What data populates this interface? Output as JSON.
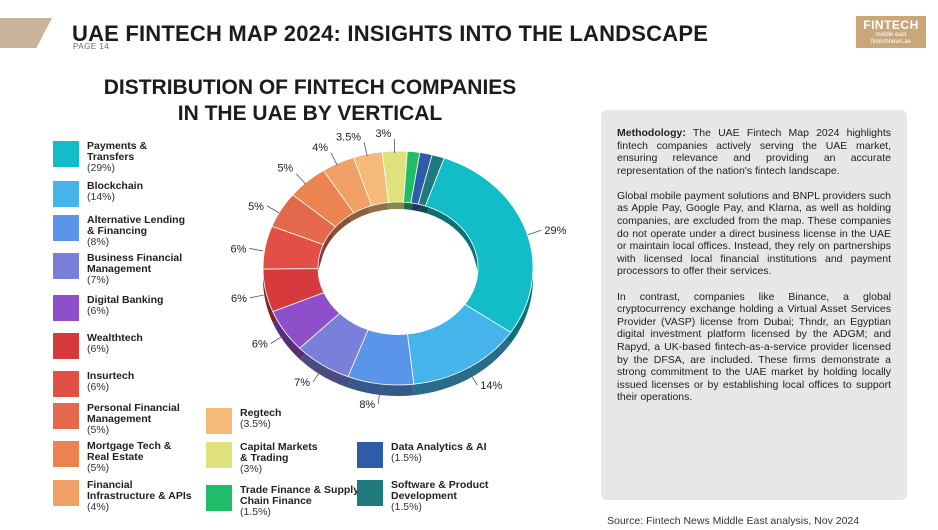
{
  "header": {
    "title": "UAE FINTECH MAP 2024: INSIGHTS INTO THE LANDSCAPE",
    "page": "PAGE 14",
    "brand_name": "FINTECH",
    "brand_sub": "middle east",
    "brand_url": "fintechnews.ae"
  },
  "chart_data": {
    "type": "pie",
    "title_line1": "DISTRIBUTION OF FINTECH COMPANIES",
    "title_line2": "IN THE UAE BY VERTICAL",
    "slices": [
      {
        "name_lines": [
          "Payments &",
          "Transfers"
        ],
        "value": 29,
        "pct": "(29%)",
        "label": "29%",
        "color": "#13bcc9"
      },
      {
        "name_lines": [
          "Blockchain"
        ],
        "value": 14,
        "pct": "(14%)",
        "label": "14%",
        "color": "#45b4ea"
      },
      {
        "name_lines": [
          "Alternative Lending",
          "& Financing"
        ],
        "value": 8,
        "pct": "(8%)",
        "label": "8%",
        "color": "#5a95ea"
      },
      {
        "name_lines": [
          "Business Financial",
          "Management"
        ],
        "value": 7,
        "pct": "(7%)",
        "label": "7%",
        "color": "#7a7fd9"
      },
      {
        "name_lines": [
          "Digital Banking"
        ],
        "value": 6,
        "pct": "(6%)",
        "label": "6%",
        "color": "#8f4fcb"
      },
      {
        "name_lines": [
          "Wealthtech"
        ],
        "value": 6,
        "pct": "(6%)",
        "label": "6%",
        "color": "#d63a3d"
      },
      {
        "name_lines": [
          "Insurtech"
        ],
        "value": 6,
        "pct": "(6%)",
        "label": "6%",
        "color": "#e14f45"
      },
      {
        "name_lines": [
          "Personal Financial",
          "Management"
        ],
        "value": 5,
        "pct": "(5%)",
        "label": "5%",
        "color": "#e3684c"
      },
      {
        "name_lines": [
          "Mortgage Tech &",
          "Real Estate"
        ],
        "value": 5,
        "pct": "(5%)",
        "label": "5%",
        "color": "#ec8452"
      },
      {
        "name_lines": [
          "Financial",
          "Infrastructure & APIs"
        ],
        "value": 4,
        "pct": "(4%)",
        "label": "4%",
        "color": "#f0a064"
      },
      {
        "name_lines": [
          "Regtech"
        ],
        "value": 3.5,
        "pct": "(3.5%)",
        "label": "3.5%",
        "color": "#f5b979"
      },
      {
        "name_lines": [
          "Capital Markets",
          "& Trading"
        ],
        "value": 3,
        "pct": "(3%)",
        "label": "3%",
        "color": "#e0e27e"
      },
      {
        "name_lines": [
          "Trade Finance & Supply",
          "Chain Finance"
        ],
        "value": 1.5,
        "pct": "(1.5%)",
        "label": "",
        "color": "#1fbd69"
      },
      {
        "name_lines": [
          "Data Analytics & AI"
        ],
        "value": 1.5,
        "pct": "(1.5%)",
        "label": "",
        "color": "#2f5ca8"
      },
      {
        "name_lines": [
          "Software & Product",
          "Development"
        ],
        "value": 1.5,
        "pct": "(1.5%)",
        "label": "",
        "color": "#1f7a7d"
      }
    ]
  },
  "methodology": {
    "heading": "Methodology:",
    "p1": " The UAE Fintech Map 2024 highlights fintech companies actively serving the UAE market, ensuring relevance and providing an accurate representation of the nation's fintech landscape.",
    "p2": "Global mobile payment solutions and BNPL providers such as Apple Pay, Google Pay, and Klarna, as well as holding companies, are excluded from the map. These companies do not operate under a direct business license in the UAE or maintain local offices. Instead, they rely on partnerships with licensed local financial institutions and payment processors to offer their services.",
    "p3": "In contrast, companies like Binance, a global cryptocurrency exchange holding a Virtual Asset Services Provider (VASP) license from Dubai; Thndr, an Egyptian digital investment platform licensed by the ADGM; and Rapyd, a UK-based fintech-as-a-service provider licensed by the DFSA, are included. These firms demonstrate a strong commitment to the UAE market by holding locally issued licenses or by establishing local offices to support their operations."
  },
  "source": "Source: Fintech News Middle East analysis, Nov 2024"
}
